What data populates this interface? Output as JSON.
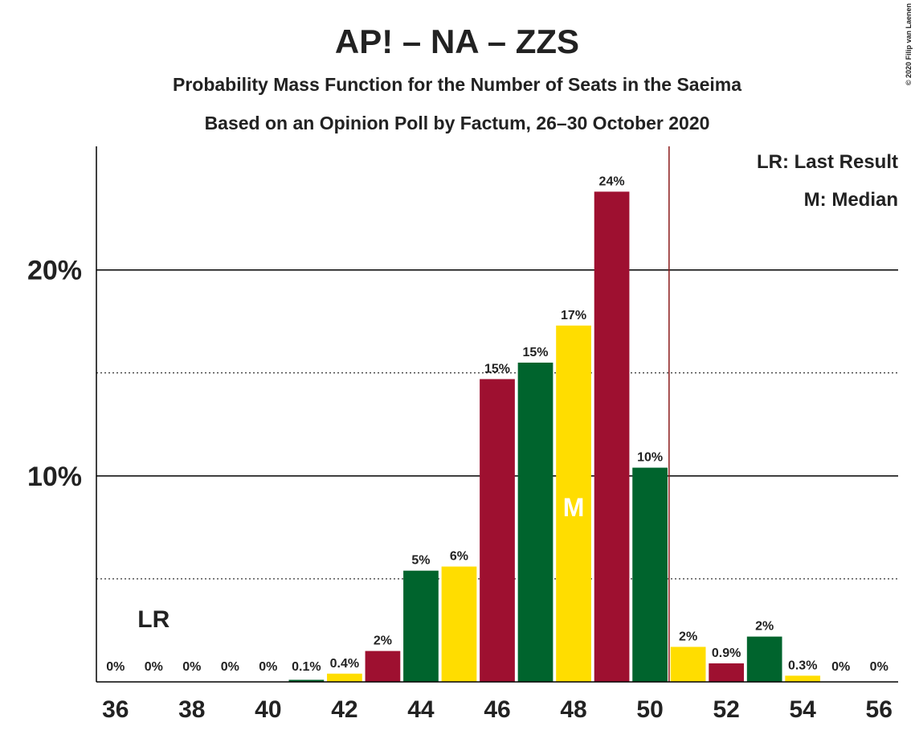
{
  "chart_data": {
    "type": "bar",
    "title": "AP! – NA – ZZS",
    "subtitles": [
      "Probability Mass Function for the Number of Seats in the Saeima",
      "Based on an Opinion Poll by Factum, 26–30 October 2020"
    ],
    "x": [
      36,
      37,
      38,
      39,
      40,
      41,
      42,
      43,
      44,
      45,
      46,
      47,
      48,
      49,
      50,
      51,
      52,
      53,
      54,
      55,
      56
    ],
    "values": [
      0,
      0,
      0,
      0,
      0,
      0.1,
      0.4,
      1.5,
      5.4,
      5.6,
      14.7,
      15.5,
      17.3,
      23.8,
      10.4,
      1.7,
      0.9,
      2.2,
      0.3,
      0,
      0
    ],
    "value_labels": [
      "0%",
      "0%",
      "0%",
      "0%",
      "0%",
      "0.1%",
      "0.4%",
      "2%",
      "5%",
      "6%",
      "15%",
      "15%",
      "17%",
      "24%",
      "10%",
      "2%",
      "0.9%",
      "2%",
      "0.3%",
      "0%",
      "0%"
    ],
    "colors": [
      "#ffdd00",
      "#9e1030",
      "#00642d"
    ],
    "xlim": [
      35.5,
      56.5
    ],
    "xticks": [
      36,
      38,
      40,
      42,
      44,
      46,
      48,
      50,
      52,
      54,
      56
    ],
    "ylim": [
      0,
      26
    ],
    "yticks": [
      {
        "value": 10,
        "label": "10%"
      },
      {
        "value": 20,
        "label": "20%"
      }
    ],
    "minor_yticks": [
      5,
      15
    ],
    "threshold": 50.5,
    "last_result": {
      "x": 37,
      "label": "LR"
    },
    "median": {
      "x": 48,
      "label": "M"
    },
    "legend": [
      "LR: Last Result",
      "M: Median"
    ],
    "copyright": "© 2020 Filip van Laenen"
  }
}
